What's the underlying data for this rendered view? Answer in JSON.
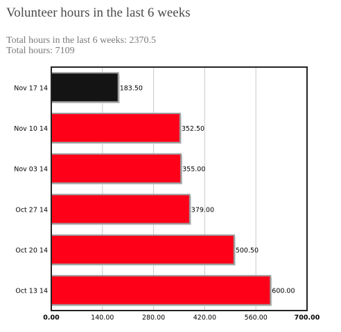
{
  "header": {
    "title": "Volunteer hours in the last 6 weeks",
    "total_6_weeks": "Total hours in the last 6 weeks: 2370.5",
    "total_hours": "Total hours: 7109"
  },
  "chart_data": {
    "type": "bar",
    "orientation": "horizontal",
    "title": "Volunteer hours in the last 6 weeks",
    "categories": [
      "Nov 17 14",
      "Nov 10 14",
      "Nov 03 14",
      "Oct 27 14",
      "Oct 20 14",
      "Oct 13 14"
    ],
    "values": [
      183.5,
      352.5,
      355.0,
      379.0,
      500.5,
      600.0
    ],
    "data_labels": [
      "183.50",
      "352.50",
      "355.00",
      "379.00",
      "500.50",
      "600.00"
    ],
    "xlim": [
      0,
      700
    ],
    "xticks": [
      0,
      140,
      280,
      420,
      560,
      700
    ],
    "xtick_labels": [
      "0.00",
      "140.00",
      "280.00",
      "420.00",
      "560.00",
      "700.00"
    ],
    "xlabel": "",
    "ylabel": "",
    "grid": true,
    "colors": {
      "highlight": "#141414",
      "bar": "#ff0019",
      "bar_border": "#9a9a9a",
      "grid": "#c8c8c8",
      "frame": "#222222"
    },
    "highlight_index": 0
  }
}
